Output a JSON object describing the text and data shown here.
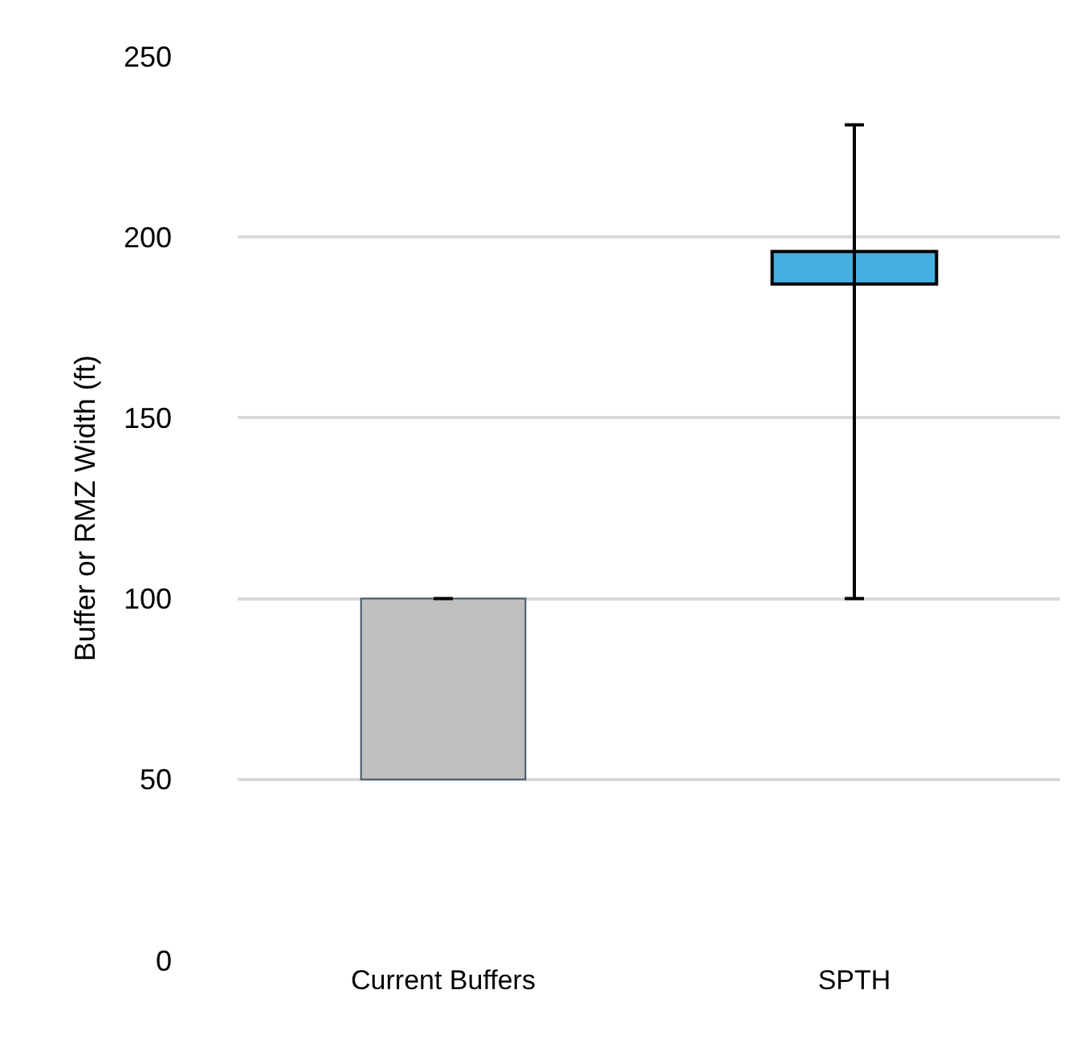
{
  "chart_data": {
    "type": "bar",
    "categories": [
      "Current Buffers",
      "SPTH"
    ],
    "base": [
      50,
      187
    ],
    "values": [
      50,
      9
    ],
    "colors": [
      "#bfbfbf",
      "#45b0e1"
    ],
    "errors": [
      null,
      [
        100,
        231
      ]
    ],
    "ylabel": "Buffer or RMZ Width (ft)",
    "ylim": [
      0,
      250
    ],
    "yticks": [
      0,
      50,
      100,
      150,
      200,
      250
    ],
    "grid": "y",
    "legend": false
  }
}
